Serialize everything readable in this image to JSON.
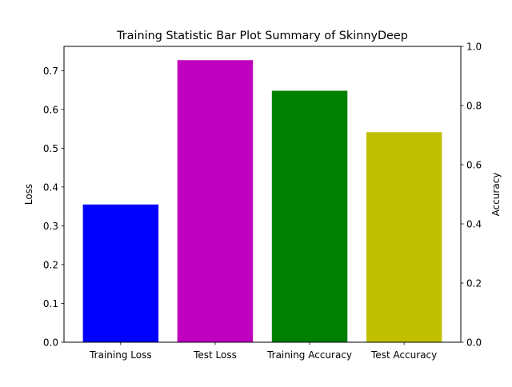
{
  "chart_data": {
    "type": "bar",
    "title": "Training Statistic Bar Plot Summary of SkinnyDeep",
    "categories": [
      "Training Loss",
      "Test Loss",
      "Training Accuracy",
      "Test Accuracy"
    ],
    "values": [
      0.355,
      0.727,
      0.85,
      0.71
    ],
    "value_axis": [
      "left",
      "left",
      "right",
      "right"
    ],
    "colors": [
      "#0000ff",
      "#bf00bf",
      "#008000",
      "#bfbf00"
    ],
    "xlabel": "",
    "ylabel": "Loss",
    "ylim": [
      0,
      0.7625
    ],
    "yticks": [
      "0.0",
      "0.1",
      "0.2",
      "0.3",
      "0.4",
      "0.5",
      "0.6",
      "0.7"
    ],
    "y2label": "Accuracy",
    "y2lim": [
      0,
      1.0
    ],
    "y2ticks": [
      "0.0",
      "0.2",
      "0.4",
      "0.6",
      "0.8",
      "1.0"
    ],
    "grid": false,
    "legend": "none"
  }
}
